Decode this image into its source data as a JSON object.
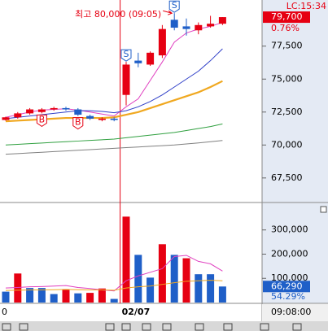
{
  "chart_data": {
    "type": "candlestick",
    "annotation": "최고 80,000 (09:05)",
    "last_update": "LC:15:34",
    "price_change": "0.76%",
    "volume_ratio": "54.29%",
    "cursor_time": "09:08:00",
    "categories": [
      "0",
      null,
      null,
      null,
      null,
      null,
      null,
      null,
      null,
      null,
      "02/07",
      null,
      null,
      null,
      null,
      null,
      null,
      null,
      null
    ],
    "signals": [
      null,
      null,
      null,
      "B",
      null,
      null,
      "B",
      null,
      null,
      null,
      "S",
      null,
      null,
      null,
      "S",
      null,
      null,
      null,
      null
    ],
    "open": [
      71900,
      72100,
      72400,
      72500,
      72700,
      72800,
      72700,
      72200,
      71900,
      72000,
      73800,
      76400,
      76100,
      76800,
      79500,
      79000,
      78700,
      79000,
      79200
    ],
    "high": [
      72150,
      72500,
      72800,
      72800,
      72900,
      72900,
      72800,
      72300,
      72100,
      72100,
      76300,
      77000,
      77100,
      79100,
      80000,
      79600,
      79300,
      79800,
      79700
    ],
    "low": [
      71850,
      72000,
      72300,
      72400,
      72600,
      72600,
      72200,
      71900,
      71800,
      71800,
      73000,
      75900,
      76000,
      76600,
      78700,
      78300,
      78400,
      78900,
      79100
    ],
    "close": [
      72100,
      72400,
      72700,
      72700,
      72800,
      72700,
      72300,
      72000,
      72000,
      71900,
      76100,
      76200,
      77000,
      78800,
      78900,
      78800,
      79100,
      79200,
      79700
    ],
    "close_labels": [
      null,
      null,
      null,
      null,
      null,
      null,
      null,
      null,
      null,
      null,
      null,
      null,
      null,
      null,
      null,
      null,
      null,
      null,
      "79,700"
    ],
    "up_color": "#e60012",
    "down_color": "#1f5fc8",
    "ylim": [
      65700,
      81000
    ],
    "yticks": [
      {
        "value": 67500,
        "label": "67,500"
      },
      {
        "value": 70000,
        "label": "70,000"
      },
      {
        "value": 72500,
        "label": "72,500"
      },
      {
        "value": 75000,
        "label": "75,000"
      },
      {
        "value": 77500,
        "label": "77,500"
      }
    ],
    "moving_averages": [
      {
        "color": "#e040c0",
        "values": [
          72100,
          72300,
          72500,
          72650,
          72700,
          72750,
          72650,
          72500,
          72350,
          72200,
          72900,
          73500,
          74900,
          76300,
          77800,
          78500,
          78800,
          79000,
          79300
        ]
      },
      {
        "color": "#3040c8",
        "values": [
          72000,
          72100,
          72200,
          72300,
          72400,
          72500,
          72600,
          72600,
          72550,
          72450,
          72600,
          72900,
          73300,
          73800,
          74400,
          75000,
          75600,
          76400,
          77300
        ]
      },
      {
        "color": "#f0a820",
        "values": [
          71800,
          71850,
          71900,
          71950,
          72000,
          72050,
          72050,
          72050,
          72050,
          72100,
          72300,
          72500,
          72800,
          73100,
          73400,
          73700,
          74000,
          74400,
          74850
        ]
      },
      {
        "color": "#30a040",
        "values": [
          70000,
          70050,
          70100,
          70150,
          70200,
          70250,
          70300,
          70350,
          70400,
          70450,
          70550,
          70650,
          70750,
          70850,
          70950,
          71100,
          71250,
          71400,
          71600
        ]
      },
      {
        "color": "#808080",
        "values": [
          69300,
          69350,
          69400,
          69450,
          69500,
          69550,
          69600,
          69650,
          69700,
          69750,
          69800,
          69850,
          69900,
          69950,
          70000,
          70080,
          70160,
          70250,
          70340
        ]
      }
    ],
    "volume": {
      "values": [
        45000,
        120000,
        60000,
        60000,
        35000,
        55000,
        38000,
        40000,
        58000,
        15000,
        355000,
        197000,
        103000,
        241000,
        197000,
        183000,
        117000,
        117000,
        66290
      ],
      "value_labels": [
        null,
        null,
        null,
        null,
        null,
        null,
        null,
        null,
        null,
        null,
        null,
        null,
        null,
        null,
        null,
        null,
        null,
        null,
        "66,290"
      ],
      "colors": [
        "#1f5fc8",
        "#e60012",
        "#1f5fc8",
        "#1f5fc8",
        "#1f5fc8",
        "#e60012",
        "#1f5fc8",
        "#e60012",
        "#e60012",
        "#1f5fc8",
        "#e60012",
        "#1f5fc8",
        "#1f5fc8",
        "#e60012",
        "#1f5fc8",
        "#e60012",
        "#1f5fc8",
        "#1f5fc8",
        "#1f5fc8"
      ],
      "ylim": [
        0,
        410000
      ],
      "yticks": [
        {
          "value": 100000,
          "label": "100,000"
        },
        {
          "value": 200000,
          "label": "200,000"
        },
        {
          "value": 300000,
          "label": "300,000"
        }
      ],
      "moving_averages": [
        {
          "color": "#e040c0",
          "values": [
            60000,
            62000,
            65000,
            66000,
            68000,
            70000,
            62000,
            58000,
            52000,
            48000,
            90000,
            110000,
            125000,
            140000,
            190000,
            195000,
            170000,
            160000,
            130000
          ]
        },
        {
          "color": "#f0a820",
          "values": [
            50000,
            51000,
            52000,
            52000,
            53000,
            54000,
            53000,
            52000,
            52000,
            51000,
            60000,
            65000,
            68000,
            75000,
            82000,
            88000,
            90000,
            92000,
            90000
          ]
        }
      ]
    }
  }
}
